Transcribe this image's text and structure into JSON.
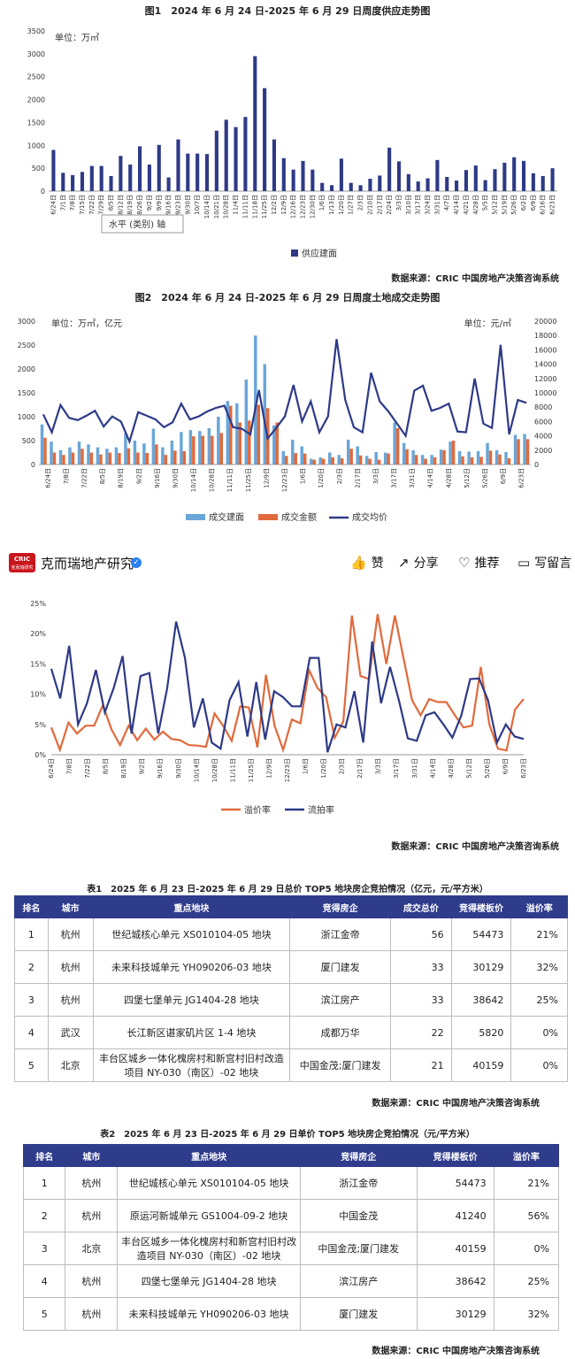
{
  "fig1": {
    "title": "图1　2024 年 6 月 24 日-2025 年 6 月 29 日周度供应走势图",
    "unit": "单位：万㎡",
    "tooltip": "水平 (类别) 轴",
    "legend": "供应建面",
    "source": "数据来源：CRIC 中国房地产决策咨询系统"
  },
  "fig2": {
    "title": "图2　2024 年 6 月 24 日-2025 年 6 月 29 日周度土地成交走势图",
    "unit_left": "单位：万㎡，亿元",
    "unit_right": "单位：元/㎡",
    "legend": [
      "成交建面",
      "成交金额",
      "成交均价"
    ]
  },
  "social": {
    "logo_text": "CRIC",
    "logo_sub": "克而瑞研究",
    "account": "克而瑞地产研究",
    "actions": [
      "赞",
      "分享",
      "推荐",
      "写留言"
    ]
  },
  "fig3": {
    "legend": [
      "溢价率",
      "流拍率"
    ],
    "source": "数据来源：CRIC 中国房地产决策咨询系统"
  },
  "chart_data": [
    {
      "type": "bar",
      "title": "",
      "ylabel": "单位：万㎡",
      "ylim": [
        0,
        3500
      ],
      "yticks": [
        0,
        500,
        1000,
        1500,
        2000,
        2500,
        3000,
        3500
      ],
      "grid": false,
      "legend_position": "bottom",
      "x_tick_labels": [
        "6/24日",
        "7/1日",
        "7/8日",
        "7/15日",
        "7/22日",
        "7/29日",
        "8/5日",
        "8/12日",
        "8/19日",
        "8/26日",
        "9/2日",
        "9/9日",
        "9/16日",
        "9/23日",
        "9/30日",
        "10/7日",
        "10/14日",
        "10/21日",
        "10/28日",
        "11/4日",
        "11/11日",
        "11/18日",
        "11/25日",
        "12/2日",
        "12/9日",
        "12/16日",
        "12/23日",
        "12/30日",
        "1/6日",
        "1/13日",
        "1/20日",
        "1/27日",
        "2/3日",
        "2/10日",
        "2/17日",
        "2/24日",
        "3/3日",
        "3/10日",
        "3/17日",
        "3/24日",
        "3/31日",
        "4/7日",
        "4/14日",
        "4/21日",
        "4/28日",
        "5/5日",
        "5/12日",
        "5/19日",
        "5/26日",
        "6/2日",
        "6/9日",
        "6/16日",
        "6/23日"
      ],
      "series": [
        {
          "name": "供应建面",
          "color": "#2e3a87",
          "values": [
            900,
            400,
            350,
            420,
            550,
            550,
            330,
            770,
            580,
            980,
            580,
            1010,
            300,
            1130,
            820,
            820,
            810,
            1320,
            1560,
            1400,
            1620,
            2950,
            2250,
            1130,
            720,
            470,
            660,
            470,
            180,
            130,
            710,
            180,
            130,
            270,
            340,
            950,
            650,
            370,
            210,
            280,
            680,
            310,
            230,
            460,
            560,
            240,
            480,
            620,
            740,
            660,
            390,
            330,
            500
          ]
        }
      ]
    },
    {
      "type": "bar",
      "title": "",
      "ylabel": "单位：万㎡，亿元",
      "ylim": [
        0,
        3000
      ],
      "y2label": "单位：元/㎡",
      "y2lim": [
        0,
        20000
      ],
      "yticks": [
        0,
        500,
        1000,
        1500,
        2000,
        2500,
        3000
      ],
      "y2ticks": [
        0,
        2000,
        4000,
        6000,
        8000,
        10000,
        12000,
        14000,
        16000,
        18000,
        20000
      ],
      "grid": false,
      "legend_position": "bottom",
      "x_tick_labels": [
        "6/24日",
        "7/8日",
        "7/22日",
        "8/5日",
        "8/19日",
        "9/2日",
        "9/16日",
        "9/30日",
        "10/14日",
        "10/28日",
        "11/11日",
        "11/25日",
        "12/9日",
        "12/23日",
        "1/6日",
        "1/20日",
        "2/3日",
        "2/17日",
        "3/3日",
        "3/17日",
        "3/31日",
        "4/14日",
        "4/28日",
        "5/12日",
        "5/26日",
        "6/9日",
        "6/23日"
      ],
      "series": [
        {
          "name": "成交建面",
          "color": "#6aa6d8",
          "type": "bar",
          "values": [
            840,
            480,
            300,
            360,
            480,
            420,
            360,
            330,
            360,
            660,
            500,
            440,
            750,
            360,
            500,
            680,
            720,
            700,
            760,
            1000,
            1330,
            1280,
            1780,
            2700,
            2100,
            820,
            280,
            520,
            380,
            120,
            150,
            250,
            200,
            520,
            380,
            180,
            260,
            250,
            880,
            450,
            300,
            200,
            200,
            310,
            480,
            280,
            270,
            280,
            450,
            300,
            260,
            620,
            640
          ]
        },
        {
          "name": "成交金额",
          "color": "#e06a3c",
          "type": "bar",
          "values": [
            560,
            250,
            200,
            250,
            330,
            250,
            210,
            250,
            240,
            340,
            250,
            240,
            420,
            200,
            290,
            280,
            590,
            600,
            600,
            660,
            1230,
            880,
            920,
            1250,
            1180,
            880,
            180,
            240,
            230,
            100,
            120,
            150,
            130,
            330,
            190,
            120,
            100,
            230,
            760,
            320,
            200,
            120,
            150,
            300,
            500,
            170,
            150,
            160,
            290,
            210,
            130,
            530,
            530
          ]
        },
        {
          "name": "成交均价",
          "color": "#2e3a87",
          "type": "line",
          "values": [
            7000,
            4500,
            8300,
            6500,
            6200,
            6800,
            7500,
            5300,
            6700,
            6000,
            3200,
            7300,
            6800,
            6300,
            5200,
            5900,
            8500,
            6300,
            6700,
            7400,
            7900,
            8200,
            5200,
            5000,
            4200,
            10400,
            3600,
            5100,
            6700,
            11100,
            6000,
            8800,
            4500,
            6700,
            17500,
            9000,
            5200,
            4500,
            12800,
            8800,
            7400,
            5700,
            4000,
            10300,
            11000,
            7500,
            7900,
            8500,
            4600,
            4500,
            12000,
            5700,
            5100,
            16700,
            4200,
            9000,
            8600
          ]
        }
      ]
    },
    {
      "type": "line",
      "title": "",
      "ylim": [
        0,
        25
      ],
      "yticks": [
        "0%",
        "5%",
        "10%",
        "15%",
        "20%",
        "25%"
      ],
      "grid": false,
      "legend_position": "bottom",
      "x_tick_labels": [
        "6/24日",
        "7/8日",
        "7/22日",
        "8/5日",
        "8/19日",
        "9/2日",
        "9/16日",
        "9/30日",
        "10/14日",
        "10/28日",
        "11/11日",
        "11/25日",
        "12/9日",
        "12/23日",
        "1/6日",
        "1/20日",
        "2/3日",
        "2/17日",
        "3/3日",
        "3/17日",
        "3/31日",
        "4/14日",
        "4/28日",
        "5/12日",
        "5/26日",
        "6/9日",
        "6/23日"
      ],
      "series": [
        {
          "name": "溢价率",
          "color": "#e06a3c",
          "values": [
            4.5,
            0.8,
            5.3,
            3.5,
            4.8,
            4.8,
            8.2,
            4.2,
            1.6,
            4.8,
            2.4,
            4.3,
            2.5,
            3.8,
            2.6,
            2.4,
            1.6,
            1.5,
            1.3,
            6.8,
            4.8,
            2.3,
            8.0,
            7.8,
            1.2,
            13.2,
            4.8,
            0.8,
            5.8,
            5.2,
            14.0,
            11.0,
            9.5,
            2.8,
            5.5,
            23.0,
            13.0,
            12.5,
            23.2,
            15.0,
            23.0,
            16.0,
            9.0,
            6.5,
            9.2,
            8.7,
            8.7,
            6.5,
            4.5,
            4.8,
            14.5,
            5.0,
            1.0,
            0.7,
            7.5,
            9.2
          ]
        },
        {
          "name": "流拍率",
          "color": "#2e3a87",
          "values": [
            14.2,
            9.3,
            18.0,
            5.0,
            8.5,
            14.0,
            7.0,
            11.0,
            16.3,
            3.5,
            13.0,
            13.5,
            3.5,
            11.0,
            22.0,
            16.0,
            4.5,
            9.3,
            2.0,
            1.0,
            9.0,
            12.0,
            3.0,
            12.0,
            2.5,
            10.5,
            9.5,
            8.0,
            8.0,
            16.0,
            16.0,
            0.4,
            5.0,
            4.5,
            10.5,
            2.0,
            18.7,
            8.5,
            14.5,
            9.0,
            2.7,
            2.3,
            6.5,
            7.0,
            5.0,
            2.8,
            6.5,
            12.5,
            12.6,
            9.0,
            2.0,
            5.0,
            3.0,
            2.6
          ]
        }
      ]
    }
  ],
  "table1": {
    "title": "表1　2025 年 6 月 23 日-2025 年 6 月 29 日总价 TOP5 地块房企竞拍情况（亿元，元/平方米）",
    "headers": [
      "排名",
      "城市",
      "重点地块",
      "竞得房企",
      "成交总价",
      "竞得楼板价",
      "溢价率"
    ],
    "rows": [
      [
        "1",
        "杭州",
        "世纪城核心单元 XS010104-05 地块",
        "浙江金帝",
        "56",
        "54473",
        "21%"
      ],
      [
        "2",
        "杭州",
        "未来科技城单元 YH090206-03 地块",
        "厦门建发",
        "33",
        "30129",
        "32%"
      ],
      [
        "3",
        "杭州",
        "四堡七堡单元 JG1404-28 地块",
        "滨江房产",
        "33",
        "38642",
        "25%"
      ],
      [
        "4",
        "武汉",
        "长江新区谌家矶片区 1-4 地块",
        "成都万华",
        "22",
        "5820",
        "0%"
      ],
      [
        "5",
        "北京",
        "丰台区城乡一体化槐房村和新宫村旧村改造项目 NY-030（南区）-02 地块",
        "中国金茂;厦门建发",
        "21",
        "40159",
        "0%"
      ]
    ],
    "source": "数据来源：CRIC 中国房地产决策咨询系统"
  },
  "table2": {
    "title": "表2　2025 年 6 月 23 日-2025 年 6 月 29 日单价 TOP5 地块房企竞拍情况（元/平方米）",
    "headers": [
      "排名",
      "城市",
      "重点地块",
      "竞得房企",
      "竞得楼板价",
      "溢价率"
    ],
    "rows": [
      [
        "1",
        "杭州",
        "世纪城核心单元 XS010104-05 地块",
        "浙江金帝",
        "54473",
        "21%"
      ],
      [
        "2",
        "杭州",
        "原运河新城单元 GS1004-09-2 地块",
        "中国金茂",
        "41240",
        "56%"
      ],
      [
        "3",
        "北京",
        "丰台区城乡一体化槐房村和新宫村旧村改造项目 NY-030（南区）-02 地块",
        "中国金茂;厦门建发",
        "40159",
        "0%"
      ],
      [
        "4",
        "杭州",
        "四堡七堡单元 JG1404-28 地块",
        "滨江房产",
        "38642",
        "25%"
      ],
      [
        "5",
        "杭州",
        "未来科技城单元 YH090206-03 地块",
        "厦门建发",
        "30129",
        "32%"
      ]
    ],
    "source": "数据来源：CRIC 中国房地产决策咨询系统"
  }
}
